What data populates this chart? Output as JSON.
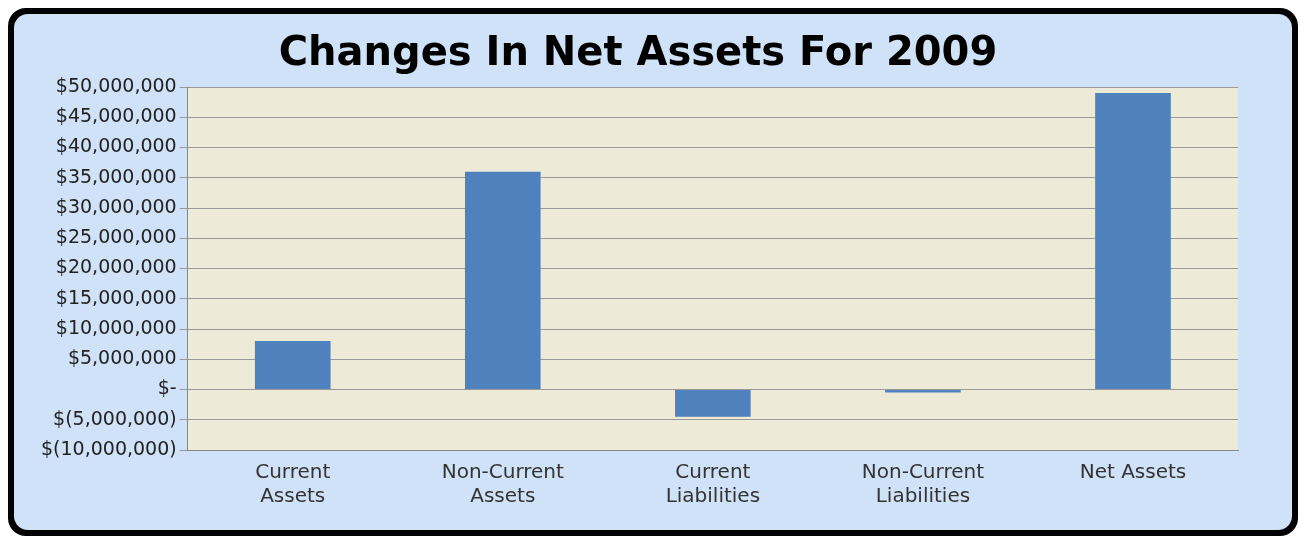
{
  "chart_data": {
    "type": "bar",
    "title": "Changes In Net Assets For 2009",
    "categories": [
      "Current Assets",
      "Non-Current Assets",
      "Current Liabilities",
      "Non-Current Liabilities",
      "Net Assets"
    ],
    "values": [
      8000000,
      36000000,
      -4500000,
      -500000,
      49000000
    ],
    "color": "#4f81bd",
    "ylim": [
      -10000000,
      50000000
    ],
    "yticks": [
      {
        "value": -10000000,
        "label": "$(10,000,000)"
      },
      {
        "value": -5000000,
        "label": "$(5,000,000)"
      },
      {
        "value": 0,
        "label": "$-"
      },
      {
        "value": 5000000,
        "label": "$5,000,000"
      },
      {
        "value": 10000000,
        "label": "$10,000,000"
      },
      {
        "value": 15000000,
        "label": "$15,000,000"
      },
      {
        "value": 20000000,
        "label": "$20,000,000"
      },
      {
        "value": 25000000,
        "label": "$25,000,000"
      },
      {
        "value": 30000000,
        "label": "$30,000,000"
      },
      {
        "value": 35000000,
        "label": "$35,000,000"
      },
      {
        "value": 40000000,
        "label": "$40,000,000"
      },
      {
        "value": 45000000,
        "label": "$45,000,000"
      },
      {
        "value": 50000000,
        "label": "$50,000,000"
      }
    ],
    "grid": "y",
    "legend": false
  }
}
